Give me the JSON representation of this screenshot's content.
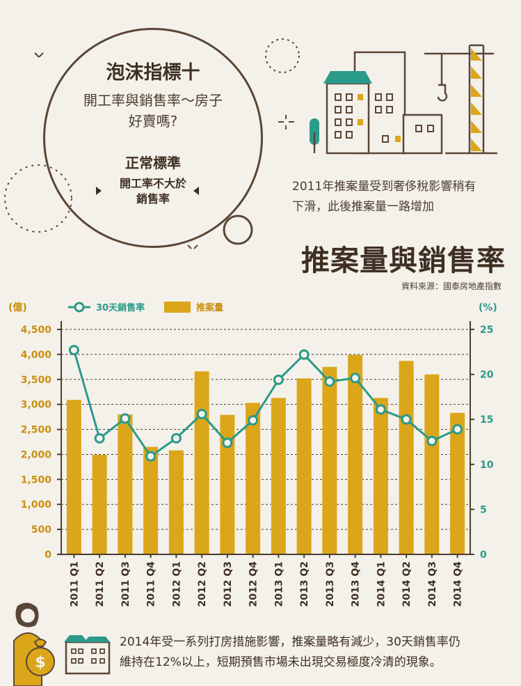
{
  "bubble": {
    "title": "泡沫指標十",
    "line1": "開工率與銷售率～房子",
    "line2": "好賣嗎?",
    "standard_label": "正常標準",
    "criterion_line1": "開工率不大於",
    "criterion_line2": "銷售率"
  },
  "note_top": {
    "line1": "2011年推案量受到奢侈稅影響稍有",
    "line2": "下滑，此後推案量一路增加"
  },
  "header": {
    "title": "推案量與銷售率",
    "source": "資料來源：國泰房地產指數"
  },
  "bottom_note": {
    "line1": "2014年受一系列打房措施影響，推案量略有減少，30天銷售率仍",
    "line2": "維持在12%以上，短期預售市場未出現交易極度冷清的現象。"
  },
  "colors": {
    "bar": "#dba61a",
    "line": "#2a9a8a",
    "grid": "#4a3c2e",
    "axis_left": "#c98f10",
    "axis_right": "#2a9a8a"
  },
  "chart_data": {
    "type": "bar+line",
    "categories": [
      "2011 Q1",
      "2011 Q2",
      "2011 Q3",
      "2011 Q4",
      "2012 Q1",
      "2012 Q2",
      "2012 Q3",
      "2012 Q4",
      "2013 Q1",
      "2013 Q2",
      "2013 Q3",
      "2013 Q4",
      "2014 Q1",
      "2014 Q2",
      "2014 Q3",
      "2014 Q4"
    ],
    "series": [
      {
        "name": "推案量",
        "type": "bar",
        "axis": "left",
        "values": [
          3090,
          1990,
          2800,
          2150,
          2080,
          3660,
          2790,
          3030,
          3130,
          3520,
          3750,
          3990,
          3130,
          3870,
          3600,
          2830
        ]
      },
      {
        "name": "30天銷售率",
        "type": "line",
        "axis": "right",
        "values": [
          22.7,
          12.9,
          15.1,
          10.9,
          12.9,
          15.6,
          12.4,
          14.9,
          19.4,
          22.2,
          19.2,
          19.6,
          16.1,
          15.0,
          12.6,
          13.9
        ]
      }
    ],
    "left_axis": {
      "unit": "(億)",
      "ylim": [
        0,
        4500
      ],
      "ticks": [
        "0",
        "500",
        "1,000",
        "1,500",
        "2,000",
        "2,500",
        "3,000",
        "3,500",
        "4,000",
        "4,500"
      ]
    },
    "right_axis": {
      "unit": "(%)",
      "ylim": [
        0,
        25
      ],
      "ticks": [
        "0",
        "5",
        "10",
        "15",
        "20",
        "25"
      ]
    },
    "grid": true,
    "legend_position": "top-left"
  }
}
